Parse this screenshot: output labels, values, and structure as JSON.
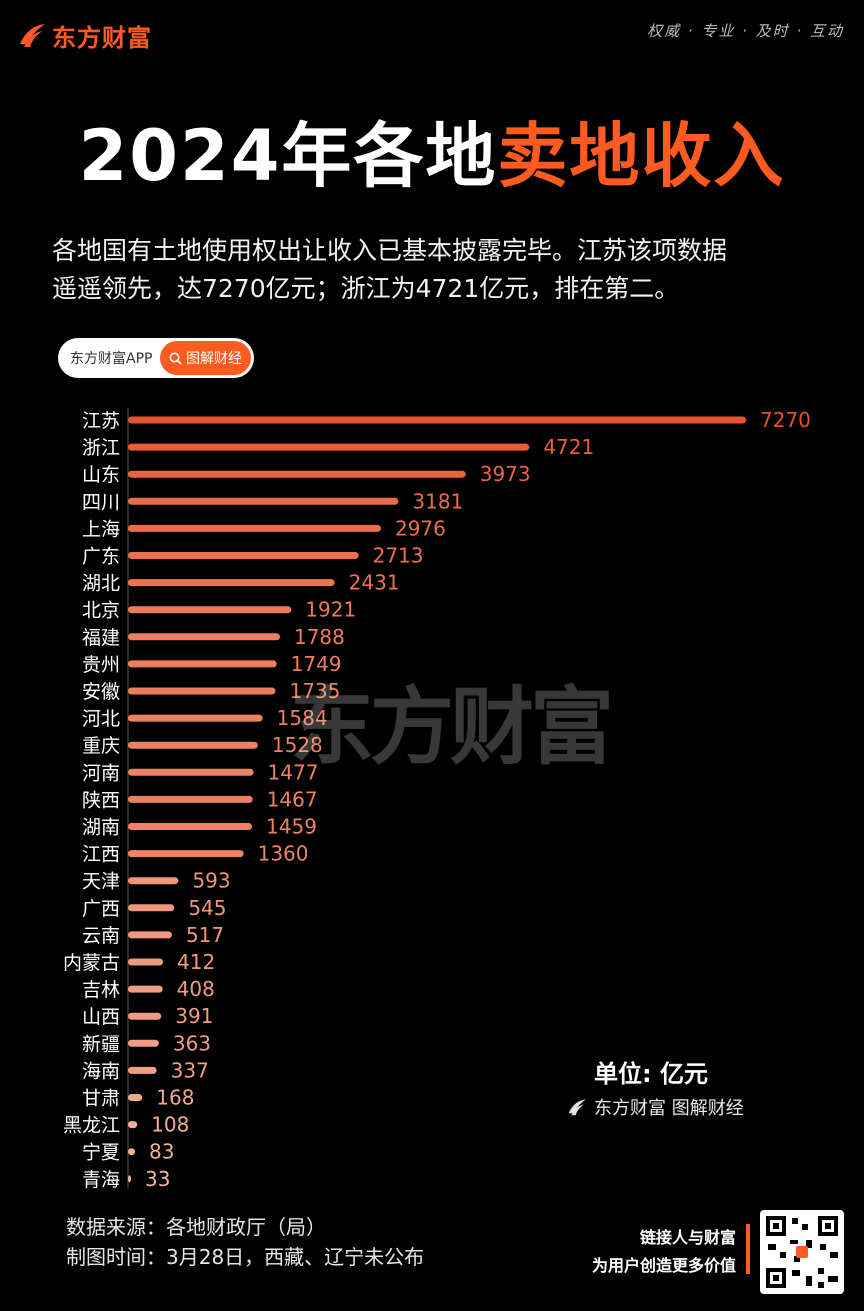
{
  "header": {
    "brand": "东方财富",
    "slogan": "权威 · 专业 · 及时 · 互动"
  },
  "title": {
    "part1": "2024年各地",
    "part2": "卖地收入"
  },
  "subtitle": {
    "line1": "各地国有土地使用权出让收入已基本披露完毕。江苏该项数据",
    "line2": "遥遥领先，达7270亿元；浙江为4721亿元，排在第二。"
  },
  "search": {
    "left_label": "东方财富APP",
    "right_label": "图解财经",
    "icon": "search-icon"
  },
  "chart_data": {
    "type": "bar",
    "orientation": "horizontal",
    "categories": [
      "江苏",
      "浙江",
      "山东",
      "四川",
      "上海",
      "广东",
      "湖北",
      "北京",
      "福建",
      "贵州",
      "安徽",
      "河北",
      "重庆",
      "河南",
      "陕西",
      "湖南",
      "江西",
      "天津",
      "广西",
      "云南",
      "内蒙古",
      "吉林",
      "山西",
      "新疆",
      "海南",
      "甘肃",
      "黑龙江",
      "宁夏",
      "青海"
    ],
    "values": [
      7270,
      4721,
      3973,
      3181,
      2976,
      2713,
      2431,
      1921,
      1788,
      1749,
      1735,
      1584,
      1528,
      1477,
      1467,
      1459,
      1360,
      593,
      545,
      517,
      412,
      408,
      391,
      363,
      337,
      168,
      108,
      83,
      33
    ],
    "title": "2024年各地卖地收入",
    "unit": "亿元",
    "bar_color_high": "#e8532a",
    "bar_color_low": "#f2c9b8"
  },
  "watermark": "东方财富",
  "footer": {
    "unit_label": "单位: 亿元",
    "brand_caption": "东方财富 图解财经",
    "source": "数据来源：各地财政厅（局）",
    "date": "制图时间：3月28日，西藏、辽宁未公布",
    "tagline1": "链接人与财富",
    "tagline2": "为用户创造更多价值"
  },
  "colors": {
    "accent": "#ff5a1f",
    "background": "#000000"
  }
}
